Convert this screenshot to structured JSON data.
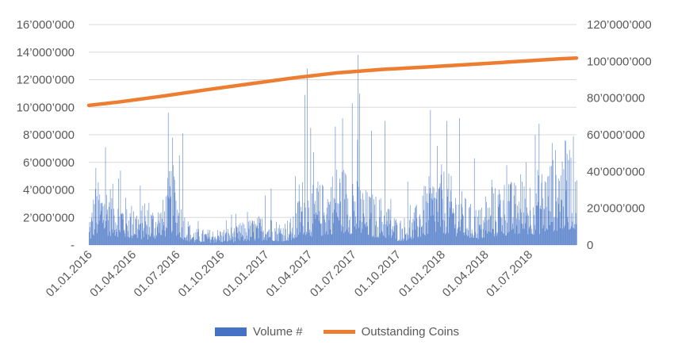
{
  "chart_data": {
    "type": "bar+line",
    "title": "",
    "xlabel": "",
    "ylabel": "",
    "y2label": "",
    "grid": true,
    "legend_position": "bottom",
    "x_range": [
      "2016-01-01",
      "2018-10-07"
    ],
    "ylim": [
      0,
      16000000
    ],
    "y2lim": [
      0,
      120000000
    ],
    "y_ticks": [
      {
        "value": 0,
        "label": "-"
      },
      {
        "value": 2000000,
        "label": "2’000’000"
      },
      {
        "value": 4000000,
        "label": "4’000’000"
      },
      {
        "value": 6000000,
        "label": "6’000’000"
      },
      {
        "value": 8000000,
        "label": "8’000’000"
      },
      {
        "value": 10000000,
        "label": "10’000’000"
      },
      {
        "value": 12000000,
        "label": "12’000’000"
      },
      {
        "value": 14000000,
        "label": "14’000’000"
      },
      {
        "value": 16000000,
        "label": "16’000’000"
      }
    ],
    "y2_ticks": [
      {
        "value": 0,
        "label": "0"
      },
      {
        "value": 20000000,
        "label": "20’000’000"
      },
      {
        "value": 40000000,
        "label": "40’000’000"
      },
      {
        "value": 60000000,
        "label": "60’000’000"
      },
      {
        "value": 80000000,
        "label": "80’000’000"
      },
      {
        "value": 100000000,
        "label": "100’000’000"
      },
      {
        "value": 120000000,
        "label": "120’000’000"
      }
    ],
    "x_ticks": [
      {
        "date": "2016-01-01",
        "label": "01.01.2016"
      },
      {
        "date": "2016-04-01",
        "label": "01.04.2016"
      },
      {
        "date": "2016-07-01",
        "label": "01.07.2016"
      },
      {
        "date": "2016-10-01",
        "label": "01.10.2016"
      },
      {
        "date": "2017-01-01",
        "label": "01.01.2017"
      },
      {
        "date": "2017-04-01",
        "label": "01.04.2017"
      },
      {
        "date": "2017-07-01",
        "label": "01.07.2017"
      },
      {
        "date": "2017-10-01",
        "label": "01.10.2017"
      },
      {
        "date": "2018-01-01",
        "label": "01.01.2018"
      },
      {
        "date": "2018-04-01",
        "label": "01.04.2018"
      },
      {
        "date": "2018-07-01",
        "label": "01.07.2018"
      }
    ],
    "series": [
      {
        "name": "Volume #",
        "type": "bar",
        "axis": "left",
        "color": "#4472C4",
        "daily": true,
        "base_profile": [
          [
            "2016-01-01",
            900000
          ],
          [
            "2016-01-12",
            2500000
          ],
          [
            "2016-02-01",
            2800000
          ],
          [
            "2016-03-01",
            2300000
          ],
          [
            "2016-04-01",
            1700000
          ],
          [
            "2016-05-01",
            1600000
          ],
          [
            "2016-06-01",
            1800000
          ],
          [
            "2016-06-20",
            3500000
          ],
          [
            "2016-07-10",
            1800000
          ],
          [
            "2016-08-01",
            700000
          ],
          [
            "2016-09-01",
            650000
          ],
          [
            "2016-10-01",
            700000
          ],
          [
            "2016-11-01",
            800000
          ],
          [
            "2016-12-01",
            1100000
          ],
          [
            "2017-01-01",
            1300000
          ],
          [
            "2017-02-01",
            1000000
          ],
          [
            "2017-03-01",
            1200000
          ],
          [
            "2017-03-20",
            3000000
          ],
          [
            "2017-04-05",
            2400000
          ],
          [
            "2017-05-01",
            2600000
          ],
          [
            "2017-06-01",
            3500000
          ],
          [
            "2017-07-01",
            3000000
          ],
          [
            "2017-08-01",
            2200000
          ],
          [
            "2017-09-01",
            2000000
          ],
          [
            "2017-10-01",
            1100000
          ],
          [
            "2017-11-01",
            1300000
          ],
          [
            "2017-12-01",
            2700000
          ],
          [
            "2018-01-01",
            3300000
          ],
          [
            "2018-02-01",
            2500000
          ],
          [
            "2018-03-01",
            1700000
          ],
          [
            "2018-04-01",
            1600000
          ],
          [
            "2018-05-01",
            2800000
          ],
          [
            "2018-06-01",
            2600000
          ],
          [
            "2018-07-01",
            2900000
          ],
          [
            "2018-08-01",
            3300000
          ],
          [
            "2018-09-01",
            4200000
          ],
          [
            "2018-10-07",
            4500000
          ]
        ],
        "spikes": [
          [
            "2016-01-15",
            5600000
          ],
          [
            "2016-02-04",
            7100000
          ],
          [
            "2016-03-06",
            5400000
          ],
          [
            "2016-06-13",
            9600000
          ],
          [
            "2016-06-22",
            7800000
          ],
          [
            "2016-07-06",
            6500000
          ],
          [
            "2016-07-13",
            8100000
          ],
          [
            "2016-10-22",
            2200000
          ],
          [
            "2016-11-24",
            2400000
          ],
          [
            "2016-12-31",
            3600000
          ],
          [
            "2017-01-12",
            4100000
          ],
          [
            "2017-03-03",
            5000000
          ],
          [
            "2017-03-23",
            10900000
          ],
          [
            "2017-03-28",
            12800000
          ],
          [
            "2017-04-04",
            8500000
          ],
          [
            "2017-05-25",
            8600000
          ],
          [
            "2017-06-09",
            9200000
          ],
          [
            "2017-06-29",
            10300000
          ],
          [
            "2017-07-11",
            13800000
          ],
          [
            "2017-07-14",
            11000000
          ],
          [
            "2017-08-08",
            8300000
          ],
          [
            "2017-09-05",
            9000000
          ],
          [
            "2017-10-22",
            4600000
          ],
          [
            "2017-12-08",
            9800000
          ],
          [
            "2017-12-22",
            7200000
          ],
          [
            "2018-01-11",
            9000000
          ],
          [
            "2018-02-06",
            9200000
          ],
          [
            "2018-03-09",
            6300000
          ],
          [
            "2018-05-15",
            5800000
          ],
          [
            "2018-06-24",
            6000000
          ],
          [
            "2018-07-21",
            8800000
          ],
          [
            "2018-08-17",
            7400000
          ],
          [
            "2018-09-10",
            5500000
          ]
        ]
      },
      {
        "name": "Outstanding Coins",
        "type": "line",
        "axis": "right",
        "color": "#ED7D31",
        "points": [
          [
            "2016-01-01",
            76000000
          ],
          [
            "2016-03-01",
            77800000
          ],
          [
            "2016-06-01",
            81000000
          ],
          [
            "2016-09-01",
            84500000
          ],
          [
            "2016-12-01",
            87800000
          ],
          [
            "2017-03-01",
            91000000
          ],
          [
            "2017-06-01",
            93800000
          ],
          [
            "2017-09-01",
            95600000
          ],
          [
            "2017-12-01",
            96900000
          ],
          [
            "2018-03-01",
            98300000
          ],
          [
            "2018-06-01",
            99800000
          ],
          [
            "2018-09-01",
            101300000
          ],
          [
            "2018-10-07",
            101800000
          ]
        ]
      }
    ]
  },
  "legend": {
    "bar_label": "Volume #",
    "line_label": "Outstanding Coins"
  }
}
